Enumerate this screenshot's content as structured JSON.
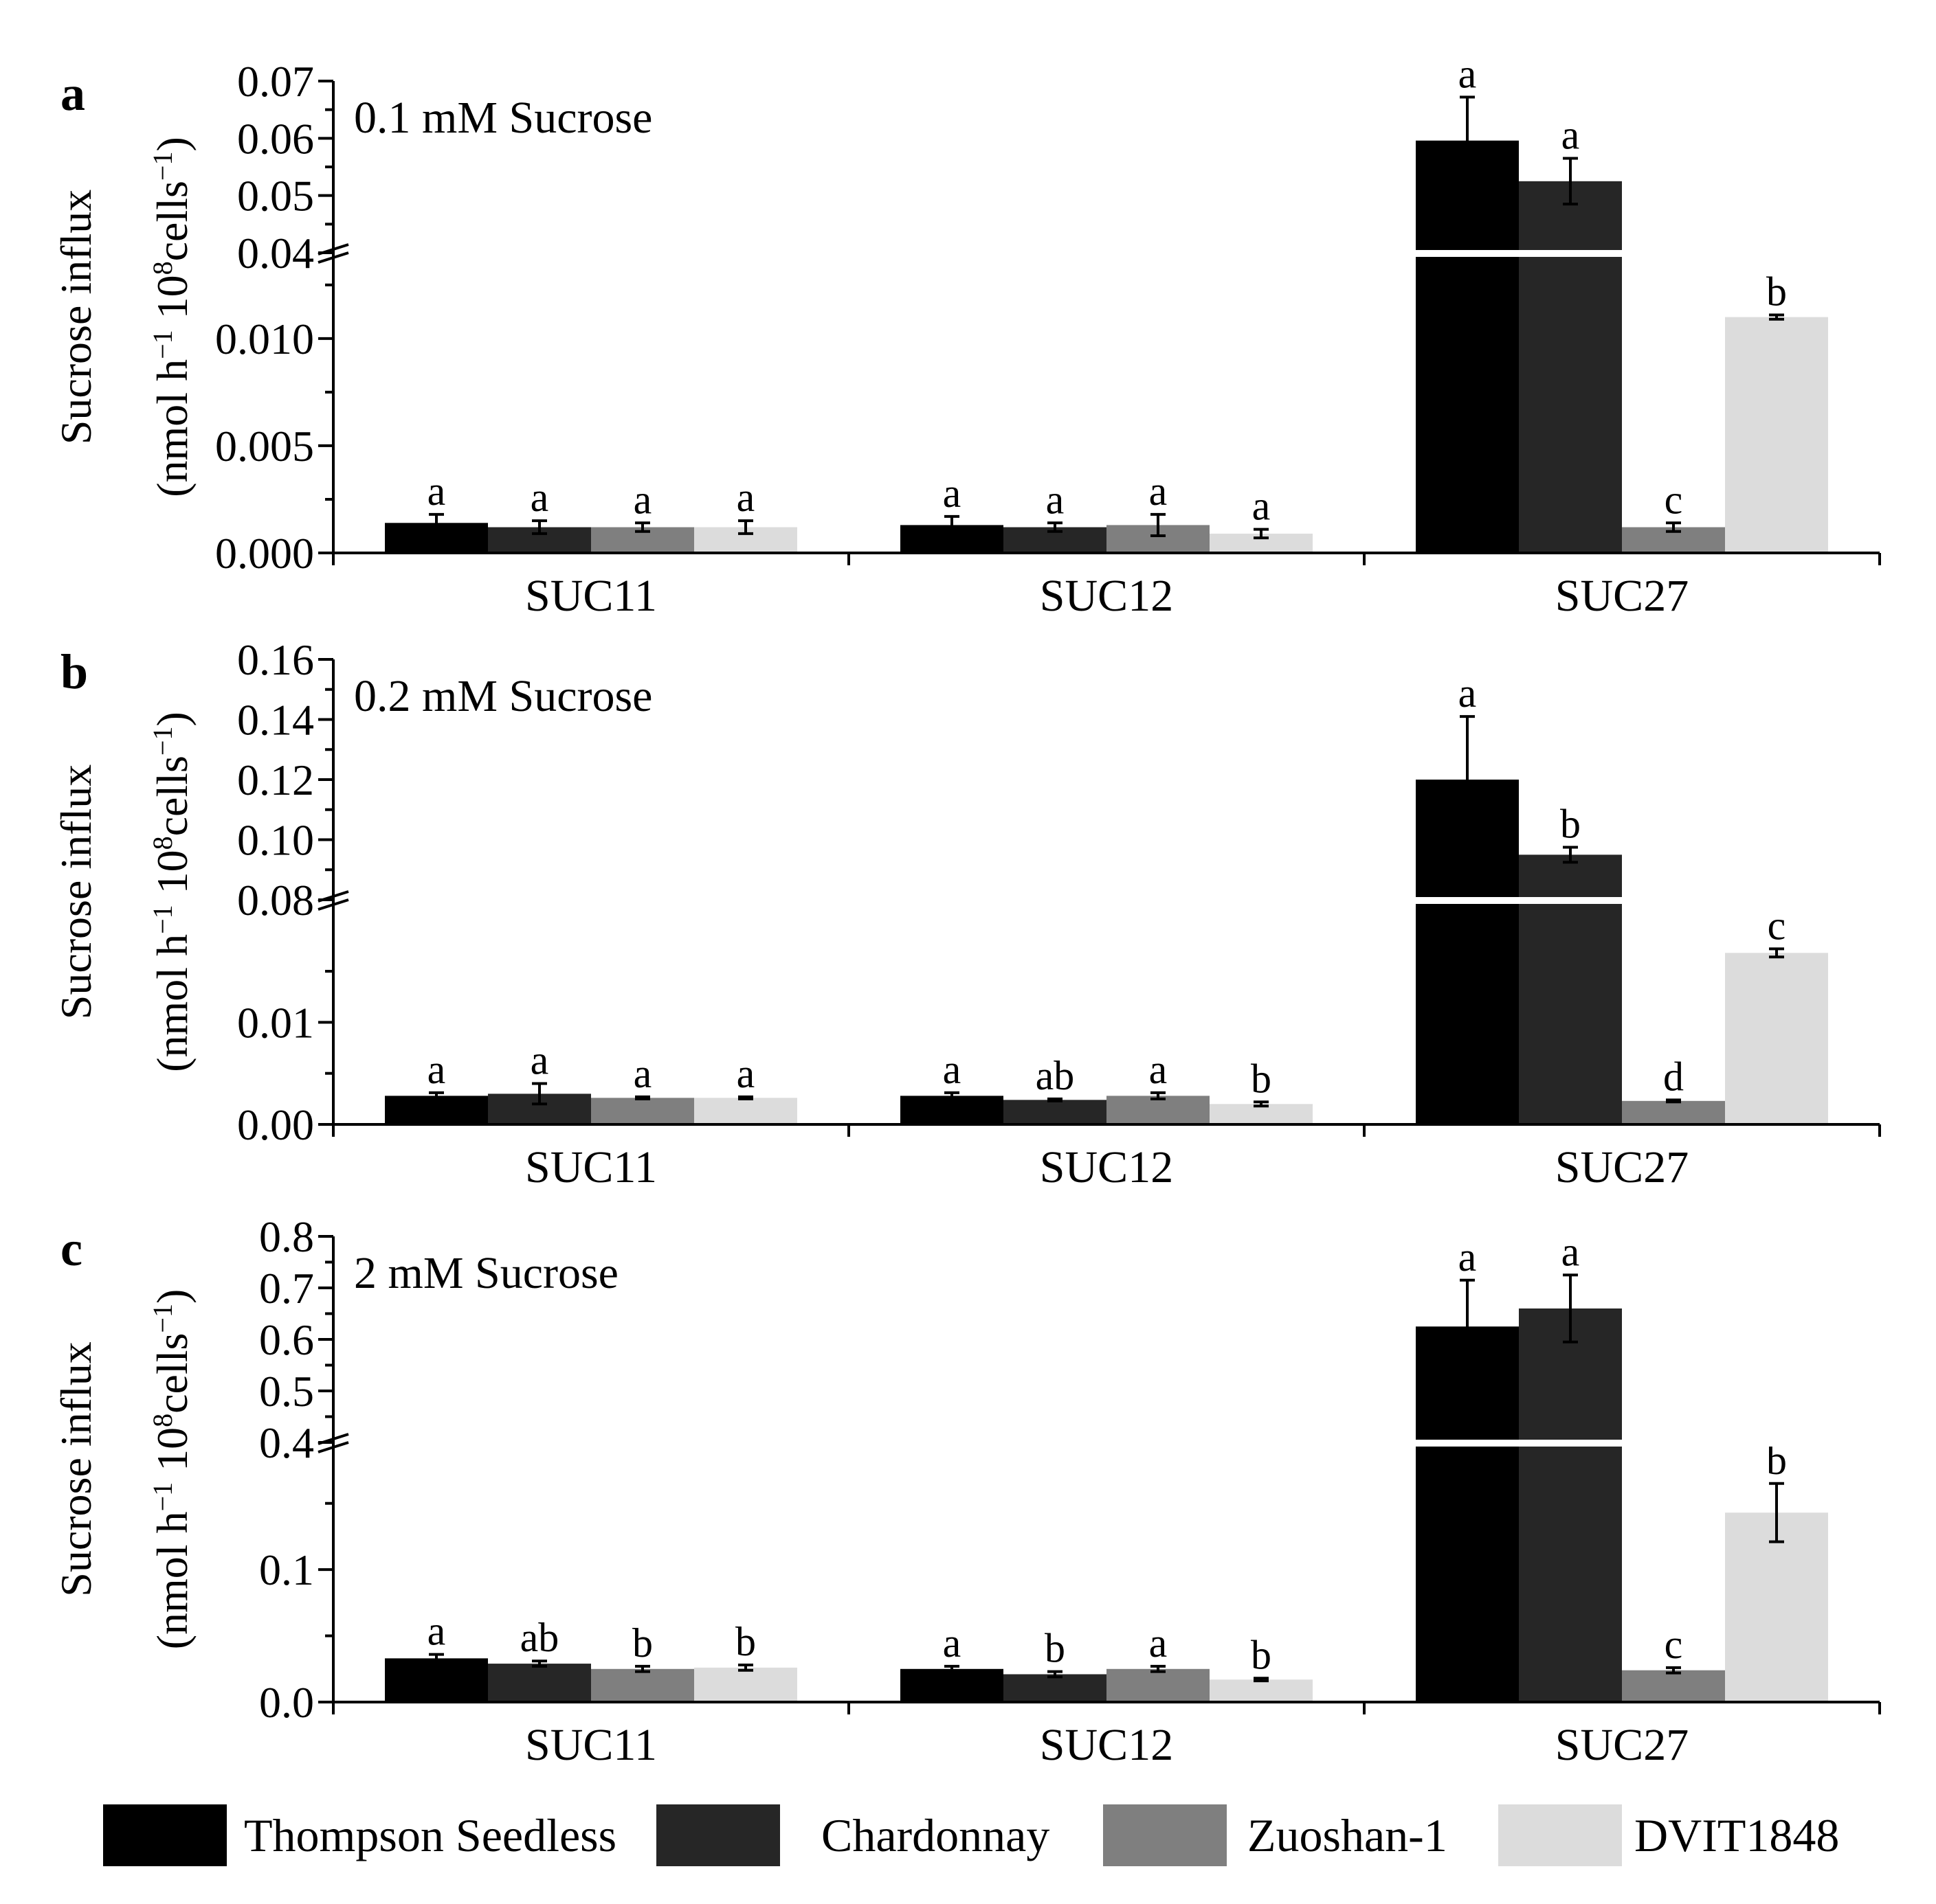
{
  "chart_data": {
    "type": "bar",
    "legend_position": "bottom",
    "legend": [
      {
        "name": "Thompson Seedless",
        "color": "#000000"
      },
      {
        "name": "Chardonnay",
        "color": "#262626"
      },
      {
        "name": "Zuoshan-1",
        "color": "#7f7f7f"
      },
      {
        "name": "DVIT1848",
        "color": "#dcdcdc"
      }
    ],
    "categories": [
      "SUC11",
      "SUC12",
      "SUC27"
    ],
    "ylabel_line1": "Sucrose influx",
    "ylabel_line2_open": "(nmol h",
    "ylabel_line2_mid": " 10",
    "ylabel_line2_cells": "cells",
    "ylabel_line2_close": ")",
    "ylabel_sup_minus1": "−1",
    "ylabel_sup_8": "8",
    "panels": [
      {
        "panel_letter": "a",
        "condition": "0.1 mM Sucrose",
        "lower_axis": {
          "range": [
            0,
            0.014
          ],
          "ticks": [
            "0.000",
            "0.005",
            "0.010"
          ],
          "tick_values": [
            0,
            0.005,
            0.01
          ]
        },
        "upper_axis": {
          "range": [
            0.04,
            0.07
          ],
          "ticks": [
            "0.04",
            "0.05",
            "0.06",
            "0.07"
          ],
          "tick_values": [
            0.04,
            0.05,
            0.06,
            0.07
          ]
        },
        "series": [
          {
            "name": "Thompson Seedless",
            "values": [
              0.0014,
              0.0013,
              0.0596
            ],
            "errors": [
              0.0004,
              0.0004,
              0.0076
            ],
            "letters": [
              "a",
              "a",
              "a"
            ]
          },
          {
            "name": "Chardonnay",
            "values": [
              0.0012,
              0.0012,
              0.0525
            ],
            "errors": [
              0.0003,
              0.0002,
              0.004
            ],
            "letters": [
              "a",
              "a",
              "a"
            ]
          },
          {
            "name": "Zuoshan-1",
            "values": [
              0.0012,
              0.0013,
              0.0012
            ],
            "errors": [
              0.0002,
              0.0005,
              0.0002
            ],
            "letters": [
              "a",
              "a",
              "c"
            ]
          },
          {
            "name": "DVIT1848",
            "values": [
              0.0012,
              0.0009,
              0.011
            ],
            "errors": [
              0.0003,
              0.0002,
              0.0001
            ],
            "letters": [
              "a",
              "a",
              "b"
            ]
          }
        ]
      },
      {
        "panel_letter": "b",
        "condition": "0.2 mM Sucrose",
        "lower_axis": {
          "range": [
            0,
            0.022
          ],
          "ticks": [
            "0.00",
            "0.01"
          ],
          "tick_values": [
            0,
            0.01
          ]
        },
        "upper_axis": {
          "range": [
            0.08,
            0.16
          ],
          "ticks": [
            "0.08",
            "0.10",
            "0.12",
            "0.14",
            "0.16"
          ],
          "tick_values": [
            0.08,
            0.1,
            0.12,
            0.14,
            0.16
          ]
        },
        "series": [
          {
            "name": "Thompson Seedless",
            "values": [
              0.0028,
              0.0028,
              0.12
            ],
            "errors": [
              0.0003,
              0.0003,
              0.021
            ],
            "letters": [
              "a",
              "a",
              "a"
            ]
          },
          {
            "name": "Chardonnay",
            "values": [
              0.003,
              0.0024,
              0.095
            ],
            "errors": [
              0.001,
              0.0001,
              0.0025
            ],
            "letters": [
              "a",
              "ab",
              "b"
            ]
          },
          {
            "name": "Zuoshan-1",
            "values": [
              0.0026,
              0.0028,
              0.0023
            ],
            "errors": [
              0.0001,
              0.0003,
              0.0001
            ],
            "letters": [
              "a",
              "a",
              "d"
            ]
          },
          {
            "name": "DVIT1848",
            "values": [
              0.0026,
              0.002,
              0.0168
            ],
            "errors": [
              0.0001,
              0.0002,
              0.0004
            ],
            "letters": [
              "a",
              "b",
              "c"
            ]
          }
        ]
      },
      {
        "panel_letter": "c",
        "condition": "2 mM Sucrose",
        "lower_axis": {
          "range": [
            0,
            0.196
          ],
          "ticks": [
            "0.0",
            "0.1"
          ],
          "tick_values": [
            0,
            0.1
          ]
        },
        "upper_axis": {
          "range": [
            0.4,
            0.8
          ],
          "ticks": [
            "0.4",
            "0.5",
            "0.6",
            "0.7",
            "0.8"
          ],
          "tick_values": [
            0.4,
            0.5,
            0.6,
            0.7,
            0.8
          ]
        },
        "series": [
          {
            "name": "Thompson Seedless",
            "values": [
              0.033,
              0.025,
              0.625
            ],
            "errors": [
              0.003,
              0.002,
              0.09
            ],
            "letters": [
              "a",
              "a",
              "a"
            ]
          },
          {
            "name": "Chardonnay",
            "values": [
              0.029,
              0.021,
              0.66
            ],
            "errors": [
              0.002,
              0.002,
              0.065
            ],
            "letters": [
              "ab",
              "b",
              "a"
            ]
          },
          {
            "name": "Zuoshan-1",
            "values": [
              0.025,
              0.025,
              0.024
            ],
            "errors": [
              0.002,
              0.002,
              0.002
            ],
            "letters": [
              "b",
              "a",
              "c"
            ]
          },
          {
            "name": "DVIT1848",
            "values": [
              0.026,
              0.017,
              0.143
            ],
            "errors": [
              0.002,
              0.001,
              0.022
            ],
            "letters": [
              "b",
              "b",
              "b"
            ]
          }
        ]
      }
    ]
  }
}
